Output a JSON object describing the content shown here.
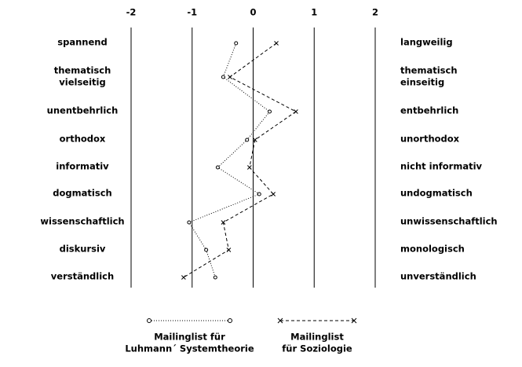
{
  "chart_data": {
    "type": "line",
    "categories": [
      "spannend",
      "thematisch\nvielseitig",
      "unentbehrlich",
      "orthodox",
      "informativ",
      "dogmatisch",
      "wissenschaftlich",
      "diskursiv",
      "verständlich"
    ],
    "right_labels": [
      "langweilig",
      "thematisch\neinseitig",
      "entbehrlich",
      "unorthodox",
      "nicht informativ",
      "undogmatisch",
      "unwissenschaftlich",
      "monologisch",
      "unverständlich"
    ],
    "xlim": [
      -2,
      2
    ],
    "xticks": [
      -2,
      -1,
      0,
      1,
      2
    ],
    "grid": true,
    "series": [
      {
        "name": "Mailinglist für\nLuhmann´ Systemtheorie",
        "marker": "o",
        "dash": "1,2",
        "color": "#000",
        "values": [
          -0.28,
          -0.49,
          0.27,
          -0.1,
          -0.58,
          0.1,
          -1.05,
          -0.77,
          -0.62
        ]
      },
      {
        "name": "Mailinglist\nfür Soziologie",
        "marker": "x",
        "dash": "4,3",
        "color": "#000",
        "values": [
          0.38,
          -0.38,
          0.7,
          0.03,
          -0.06,
          0.33,
          -0.49,
          -0.4,
          -1.14
        ]
      }
    ]
  }
}
